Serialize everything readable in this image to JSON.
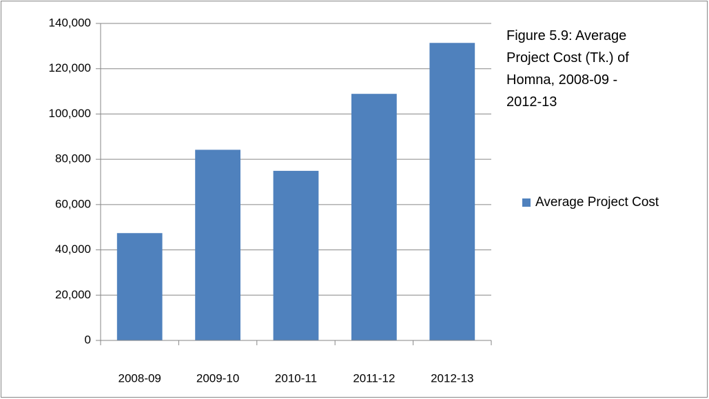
{
  "chart_data": {
    "type": "bar",
    "title": "Figure 5.9: Average Project Cost (Tk.) of Homna, 2008-09 - 2012-13",
    "categories": [
      "2008-09",
      "2009-10",
      "2010-11",
      "2011-12",
      "2012-13"
    ],
    "series": [
      {
        "name": "Average Project Cost",
        "color": "#4f81bd",
        "values": [
          47400,
          84200,
          74900,
          108900,
          131400
        ]
      }
    ],
    "ylim": [
      0,
      140000
    ],
    "yticks": [
      0,
      {
        "value": 20000,
        "label": "20,000"
      },
      {
        "value": 40000,
        "label": "40,000"
      },
      {
        "value": 60000,
        "label": "60,000"
      },
      {
        "value": 80000,
        "label": "80,000"
      },
      {
        "value": 100000,
        "label": "100,000"
      },
      {
        "value": 120000,
        "label": "120,000"
      },
      {
        "value": 140000,
        "label": "140,000"
      }
    ],
    "grid": true,
    "legend": "right"
  }
}
